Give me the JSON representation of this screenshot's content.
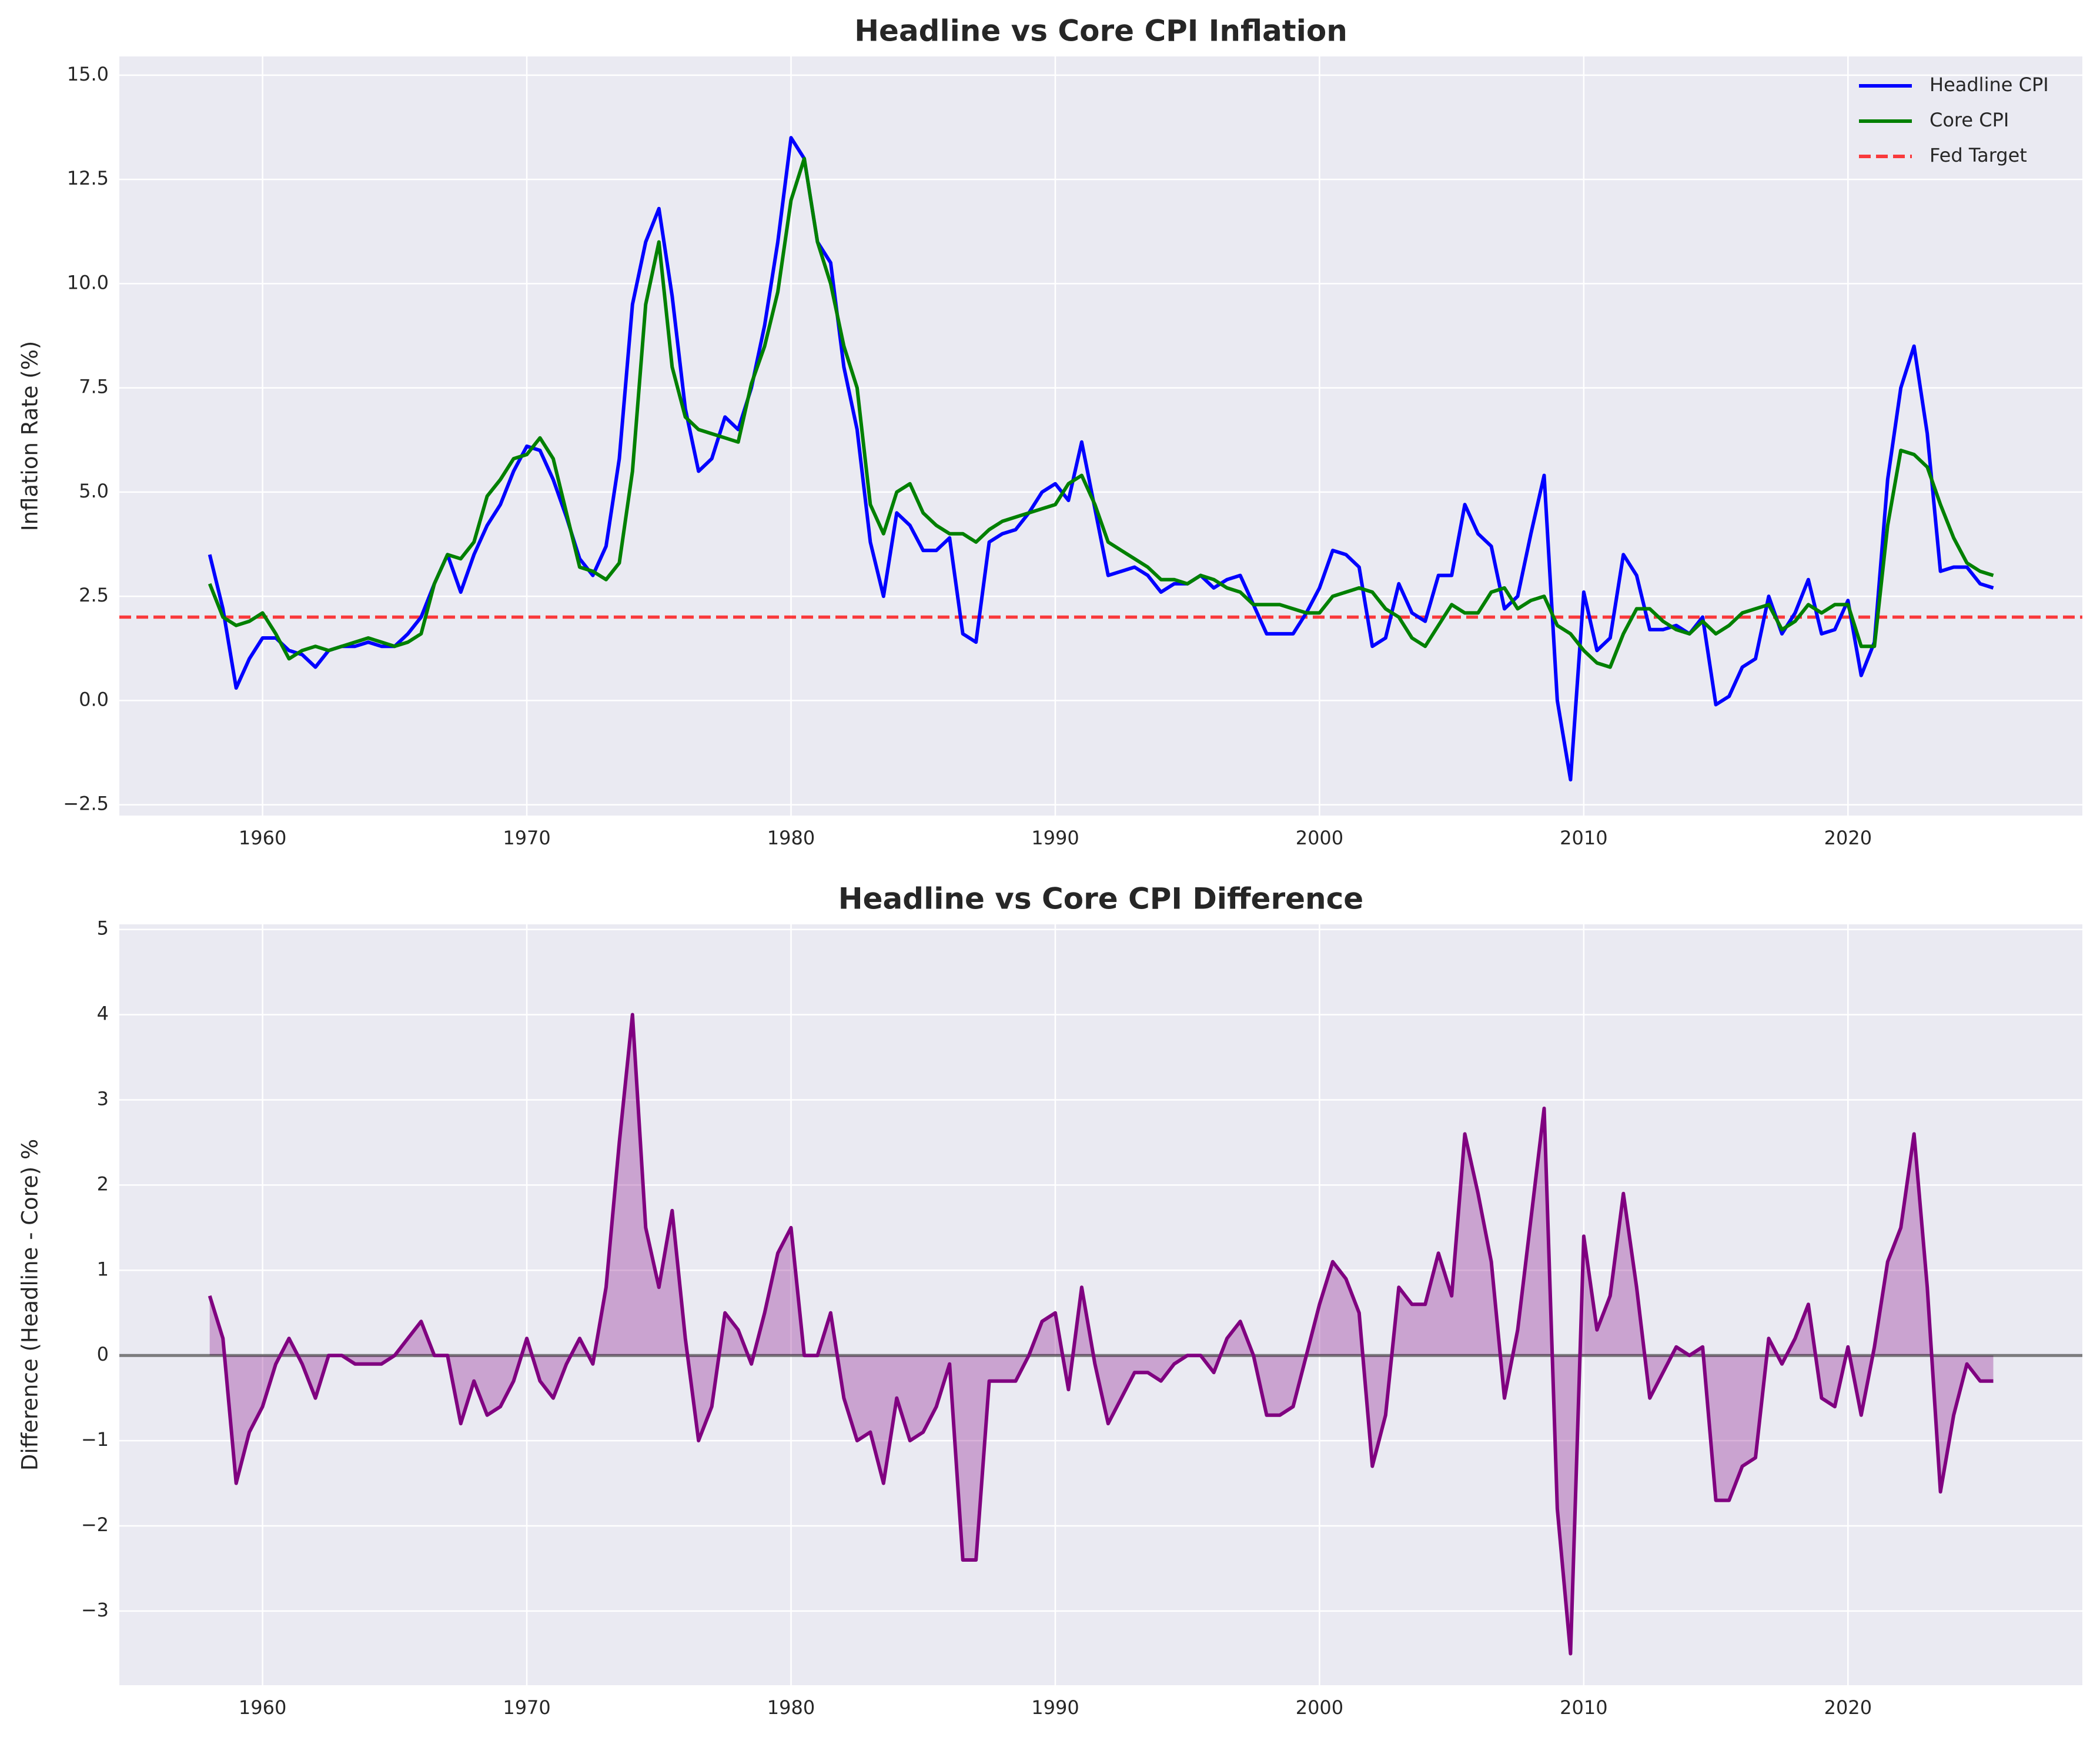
{
  "chart_data": [
    {
      "type": "line",
      "title": "Headline vs Core CPI Inflation",
      "y_label": "Inflation Rate (%)",
      "x": [
        1958,
        1958.5,
        1959,
        1959.5,
        1960,
        1960.5,
        1961,
        1961.5,
        1962,
        1962.5,
        1963,
        1963.5,
        1964,
        1964.5,
        1965,
        1965.5,
        1966,
        1966.5,
        1967,
        1967.5,
        1968,
        1968.5,
        1969,
        1969.5,
        1970,
        1970.5,
        1971,
        1971.5,
        1972,
        1972.5,
        1973,
        1973.5,
        1974,
        1974.5,
        1975,
        1975.5,
        1976,
        1976.5,
        1977,
        1977.5,
        1978,
        1978.5,
        1979,
        1979.5,
        1980,
        1980.5,
        1981,
        1981.5,
        1982,
        1982.5,
        1983,
        1983.5,
        1984,
        1984.5,
        1985,
        1985.5,
        1986,
        1986.5,
        1987,
        1987.5,
        1988,
        1988.5,
        1989,
        1989.5,
        1990,
        1990.5,
        1991,
        1991.5,
        1992,
        1992.5,
        1993,
        1993.5,
        1994,
        1994.5,
        1995,
        1995.5,
        1996,
        1996.5,
        1997,
        1997.5,
        1998,
        1998.5,
        1999,
        1999.5,
        2000,
        2000.5,
        2001,
        2001.5,
        2002,
        2002.5,
        2003,
        2003.5,
        2004,
        2004.5,
        2005,
        2005.5,
        2006,
        2006.5,
        2007,
        2007.5,
        2008,
        2008.5,
        2009,
        2009.5,
        2010,
        2010.5,
        2011,
        2011.5,
        2012,
        2012.5,
        2013,
        2013.5,
        2014,
        2014.5,
        2015,
        2015.5,
        2016,
        2016.5,
        2017,
        2017.5,
        2018,
        2018.5,
        2019,
        2019.5,
        2020,
        2020.5,
        2021,
        2021.5,
        2022,
        2022.5,
        2023,
        2023.5,
        2024,
        2024.5,
        2025,
        2025.5
      ],
      "series": [
        {
          "name": "Headline CPI",
          "color": "#0000ff",
          "values": [
            3.5,
            2.2,
            0.3,
            1.0,
            1.5,
            1.5,
            1.2,
            1.1,
            0.8,
            1.2,
            1.3,
            1.3,
            1.4,
            1.3,
            1.3,
            1.6,
            2.0,
            2.8,
            3.5,
            2.6,
            3.5,
            4.2,
            4.7,
            5.5,
            6.1,
            6.0,
            5.3,
            4.4,
            3.4,
            3.0,
            3.7,
            5.8,
            9.5,
            11.0,
            11.8,
            9.7,
            7.0,
            5.5,
            5.8,
            6.8,
            6.5,
            7.5,
            9.0,
            11.0,
            13.5,
            13.0,
            11.0,
            10.5,
            8.0,
            6.5,
            3.8,
            2.5,
            4.5,
            4.2,
            3.6,
            3.6,
            3.9,
            1.6,
            1.4,
            3.8,
            4.0,
            4.1,
            4.5,
            5.0,
            5.2,
            4.8,
            6.2,
            4.6,
            3.0,
            3.1,
            3.2,
            3.0,
            2.6,
            2.8,
            2.8,
            3.0,
            2.7,
            2.9,
            3.0,
            2.3,
            1.6,
            1.6,
            1.6,
            2.1,
            2.7,
            3.6,
            3.5,
            3.2,
            1.3,
            1.5,
            2.8,
            2.1,
            1.9,
            3.0,
            3.0,
            4.7,
            4.0,
            3.7,
            2.2,
            2.5,
            4.0,
            5.4,
            0.0,
            -1.9,
            2.6,
            1.2,
            1.5,
            3.5,
            3.0,
            1.7,
            1.7,
            1.8,
            1.6,
            2.0,
            -0.1,
            0.1,
            0.8,
            1.0,
            2.5,
            1.6,
            2.1,
            2.9,
            1.6,
            1.7,
            2.4,
            0.6,
            1.4,
            5.3,
            7.5,
            8.5,
            6.4,
            3.1,
            3.2,
            3.2,
            2.8,
            2.7
          ]
        },
        {
          "name": "Core CPI",
          "color": "#008000",
          "values": [
            2.8,
            2.0,
            1.8,
            1.9,
            2.1,
            1.6,
            1.0,
            1.2,
            1.3,
            1.2,
            1.3,
            1.4,
            1.5,
            1.4,
            1.3,
            1.4,
            1.6,
            2.8,
            3.5,
            3.4,
            3.8,
            4.9,
            5.3,
            5.8,
            5.9,
            6.3,
            5.8,
            4.5,
            3.2,
            3.1,
            2.9,
            3.3,
            5.5,
            9.5,
            11.0,
            8.0,
            6.8,
            6.5,
            6.4,
            6.3,
            6.2,
            7.6,
            8.5,
            9.8,
            12.0,
            13.0,
            11.0,
            10.0,
            8.5,
            7.5,
            4.7,
            4.0,
            5.0,
            5.2,
            4.5,
            4.2,
            4.0,
            4.0,
            3.8,
            4.1,
            4.3,
            4.4,
            4.5,
            4.6,
            4.7,
            5.2,
            5.4,
            4.7,
            3.8,
            3.6,
            3.4,
            3.2,
            2.9,
            2.9,
            2.8,
            3.0,
            2.9,
            2.7,
            2.6,
            2.3,
            2.3,
            2.3,
            2.2,
            2.1,
            2.1,
            2.5,
            2.6,
            2.7,
            2.6,
            2.2,
            2.0,
            1.5,
            1.3,
            1.8,
            2.3,
            2.1,
            2.1,
            2.6,
            2.7,
            2.2,
            2.4,
            2.5,
            1.8,
            1.6,
            1.2,
            0.9,
            0.8,
            1.6,
            2.2,
            2.2,
            1.9,
            1.7,
            1.6,
            1.9,
            1.6,
            1.8,
            2.1,
            2.2,
            2.3,
            1.7,
            1.9,
            2.3,
            2.1,
            2.3,
            2.3,
            1.3,
            1.3,
            4.2,
            6.0,
            5.9,
            5.6,
            4.7,
            3.9,
            3.3,
            3.1,
            3.0
          ]
        }
      ],
      "hline": {
        "name": "Fed Target",
        "value": 2,
        "color": "#ff0000"
      },
      "xlim": [
        1954.58,
        2028.87
      ],
      "xticks": [
        1960,
        1970,
        1980,
        1990,
        2000,
        2010,
        2020
      ],
      "ylim": [
        -2.76,
        15.45
      ],
      "yticks": [
        {
          "value": -2.5,
          "label": "−2.5"
        },
        {
          "value": 0,
          "label": "0.0"
        },
        {
          "value": 2.5,
          "label": "2.5"
        },
        {
          "value": 5,
          "label": "5.0"
        },
        {
          "value": 7.5,
          "label": "7.5"
        },
        {
          "value": 10,
          "label": "10.0"
        },
        {
          "value": 12.5,
          "label": "12.5"
        },
        {
          "value": 15,
          "label": "15.0"
        }
      ],
      "grid": true,
      "legend": "upper right"
    },
    {
      "type": "area",
      "title": "Headline vs Core CPI Difference",
      "y_label": "Difference (Headline - Core) %",
      "x": [
        1958,
        1958.5,
        1959,
        1959.5,
        1960,
        1960.5,
        1961,
        1961.5,
        1962,
        1962.5,
        1963,
        1963.5,
        1964,
        1964.5,
        1965,
        1965.5,
        1966,
        1966.5,
        1967,
        1967.5,
        1968,
        1968.5,
        1969,
        1969.5,
        1970,
        1970.5,
        1971,
        1971.5,
        1972,
        1972.5,
        1973,
        1973.5,
        1974,
        1974.5,
        1975,
        1975.5,
        1976,
        1976.5,
        1977,
        1977.5,
        1978,
        1978.5,
        1979,
        1979.5,
        1980,
        1980.5,
        1981,
        1981.5,
        1982,
        1982.5,
        1983,
        1983.5,
        1984,
        1984.5,
        1985,
        1985.5,
        1986,
        1986.5,
        1987,
        1987.5,
        1988,
        1988.5,
        1989,
        1989.5,
        1990,
        1990.5,
        1991,
        1991.5,
        1992,
        1992.5,
        1993,
        1993.5,
        1994,
        1994.5,
        1995,
        1995.5,
        1996,
        1996.5,
        1997,
        1997.5,
        1998,
        1998.5,
        1999,
        1999.5,
        2000,
        2000.5,
        2001,
        2001.5,
        2002,
        2002.5,
        2003,
        2003.5,
        2004,
        2004.5,
        2005,
        2005.5,
        2006,
        2006.5,
        2007,
        2007.5,
        2008,
        2008.5,
        2009,
        2009.5,
        2010,
        2010.5,
        2011,
        2011.5,
        2012,
        2012.5,
        2013,
        2013.5,
        2014,
        2014.5,
        2015,
        2015.5,
        2016,
        2016.5,
        2017,
        2017.5,
        2018,
        2018.5,
        2019,
        2019.5,
        2020,
        2020.5,
        2021,
        2021.5,
        2022,
        2022.5,
        2023,
        2023.5,
        2024,
        2024.5,
        2025,
        2025.5
      ],
      "series": [
        {
          "color": "#800080",
          "fill_opacity": 0.3,
          "values": [
            0.7,
            0.2,
            -1.5,
            -0.9,
            -0.6,
            -0.1,
            0.2,
            -0.1,
            -0.5,
            0.0,
            0.0,
            -0.1,
            -0.1,
            -0.1,
            0.0,
            0.2,
            0.4,
            0.0,
            0.0,
            -0.8,
            -0.3,
            -0.7,
            -0.6,
            -0.3,
            0.2,
            -0.3,
            -0.5,
            -0.1,
            0.2,
            -0.1,
            0.8,
            2.5,
            4.0,
            1.5,
            0.8,
            1.7,
            0.2,
            -1.0,
            -0.6,
            0.5,
            0.3,
            -0.1,
            0.5,
            1.2,
            1.5,
            0.0,
            0.0,
            0.5,
            -0.5,
            -1.0,
            -0.9,
            -1.5,
            -0.5,
            -1.0,
            -0.9,
            -0.6,
            -0.1,
            -2.4,
            -2.4,
            -0.3,
            -0.3,
            -0.3,
            0.0,
            0.4,
            0.5,
            -0.4,
            0.8,
            -0.1,
            -0.8,
            -0.5,
            -0.2,
            -0.2,
            -0.3,
            -0.1,
            0.0,
            0.0,
            -0.2,
            0.2,
            0.4,
            0.0,
            -0.7,
            -0.7,
            -0.6,
            0.0,
            0.6,
            1.1,
            0.9,
            0.5,
            -1.3,
            -0.7,
            0.8,
            0.6,
            0.6,
            1.2,
            0.7,
            2.6,
            1.9,
            1.1,
            -0.5,
            0.3,
            1.6,
            2.9,
            -1.8,
            -3.5,
            1.4,
            0.3,
            0.7,
            1.9,
            0.8,
            -0.5,
            -0.2,
            0.1,
            0.0,
            0.1,
            -1.7,
            -1.7,
            -1.3,
            -1.2,
            0.2,
            -0.1,
            0.2,
            0.6,
            -0.5,
            -0.6,
            0.1,
            -0.7,
            0.1,
            1.1,
            1.5,
            2.6,
            0.8,
            -1.6,
            -0.7,
            -0.1,
            -0.3,
            -0.3
          ]
        }
      ],
      "xlim": [
        1954.58,
        2028.87
      ],
      "xticks": [
        1960,
        1970,
        1980,
        1990,
        2000,
        2010,
        2020
      ],
      "ylim": [
        -3.87,
        5.06
      ],
      "yticks": [
        {
          "value": -3,
          "label": "−3"
        },
        {
          "value": -2,
          "label": "−2"
        },
        {
          "value": -1,
          "label": "−1"
        },
        0,
        1,
        2,
        3,
        4,
        5
      ],
      "grid": true
    }
  ]
}
